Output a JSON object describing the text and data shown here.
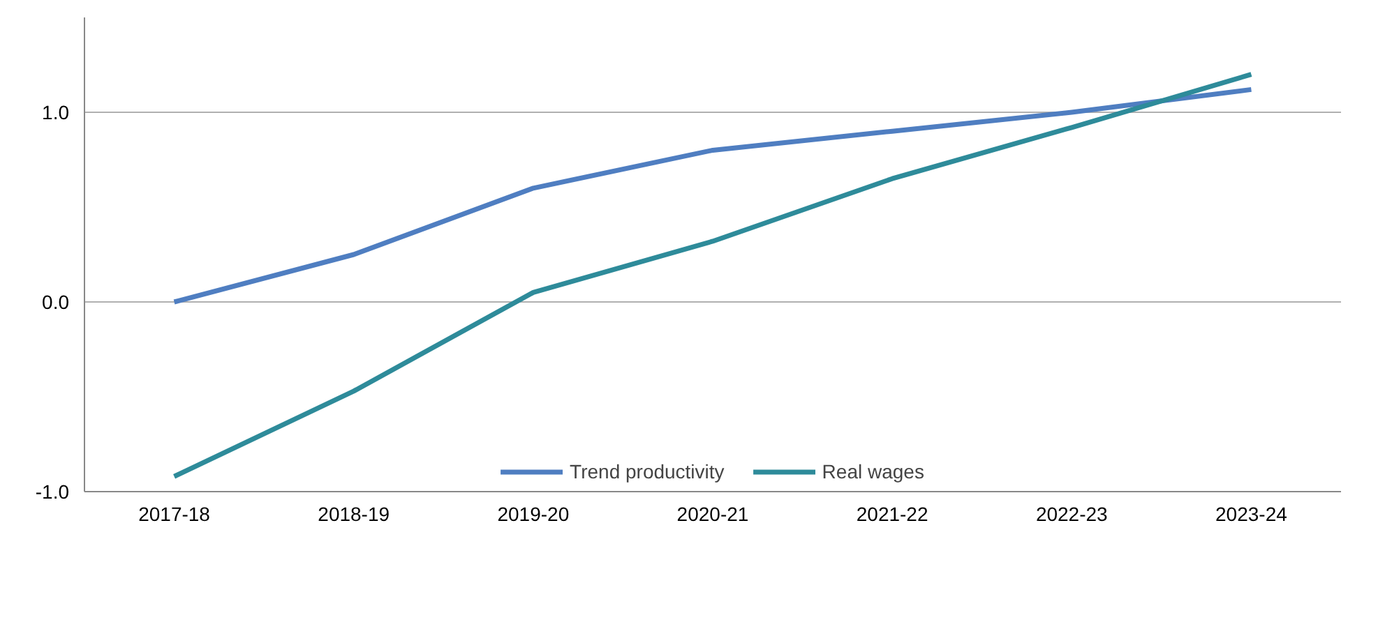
{
  "chart_data": {
    "type": "line",
    "categories": [
      "2017-18",
      "2018-19",
      "2019-20",
      "2020-21",
      "2021-22",
      "2022-23",
      "2023-24"
    ],
    "series": [
      {
        "name": "Trend productivity",
        "color": "#4f7ec1",
        "values": [
          0,
          0.25,
          0.6,
          0.8,
          0.9,
          1.0,
          1.12
        ]
      },
      {
        "name": "Real wages",
        "color": "#2e8b9a",
        "values": [
          -0.92,
          -0.47,
          0.05,
          0.32,
          0.65,
          0.92,
          1.2
        ]
      }
    ],
    "ylim": [
      -1,
      1.5
    ],
    "yticks": [
      {
        "value": -1,
        "label": "-1.0"
      },
      {
        "value": 0,
        "label": "0.0"
      },
      {
        "value": 1,
        "label": "1.0"
      }
    ],
    "grid": "y",
    "legend": "bottom",
    "line_style": "solid"
  }
}
